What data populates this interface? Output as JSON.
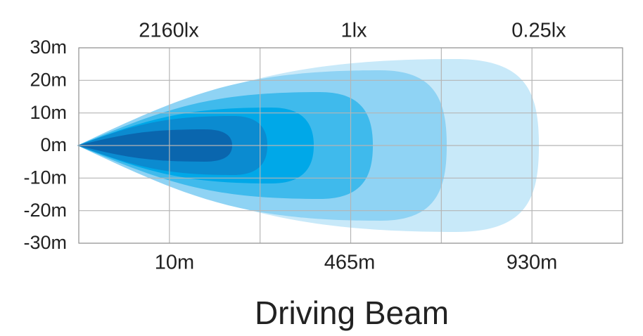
{
  "y_axis": {
    "labels": [
      "30m",
      "20m",
      "10m",
      "0m",
      "-10m",
      "-20m",
      "-30m"
    ]
  },
  "top_labels": [
    "2160lx",
    "1lx",
    "0.25lx"
  ],
  "bottom_labels": [
    "10m",
    "465m",
    "930m"
  ],
  "title": "Driving Beam"
}
